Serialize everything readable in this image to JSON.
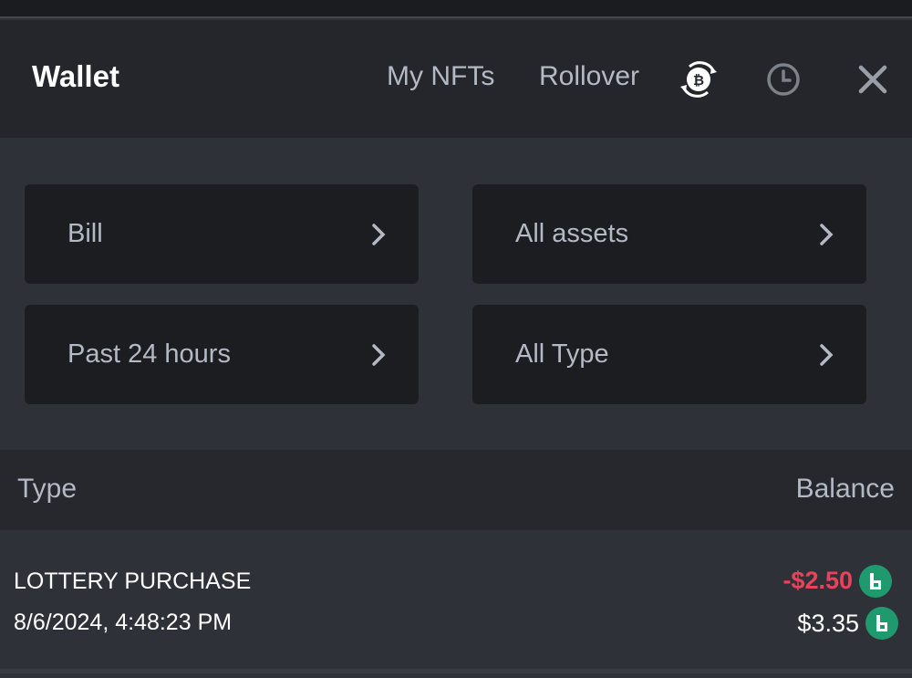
{
  "header": {
    "title": "Wallet",
    "my_nfts": "My NFTs",
    "rollover": "Rollover",
    "icons": [
      "bitcoin-swap-icon",
      "history-clock-icon",
      "close-icon"
    ]
  },
  "filters": [
    {
      "label": "Bill"
    },
    {
      "label": "All assets"
    },
    {
      "label": "Past 24 hours"
    },
    {
      "label": "All Type"
    }
  ],
  "table": {
    "columns": [
      "Type",
      "Balance"
    ],
    "rows": [
      {
        "type": "LOTTERY PURCHASE",
        "datetime": "8/6/2024, 4:48:23 PM",
        "amount": "-$2.50",
        "balance": "$3.35",
        "currency_icon": "bc-coin-icon"
      }
    ]
  },
  "colors": {
    "negative": "#e8435a",
    "coin": "#1f9a6f"
  }
}
